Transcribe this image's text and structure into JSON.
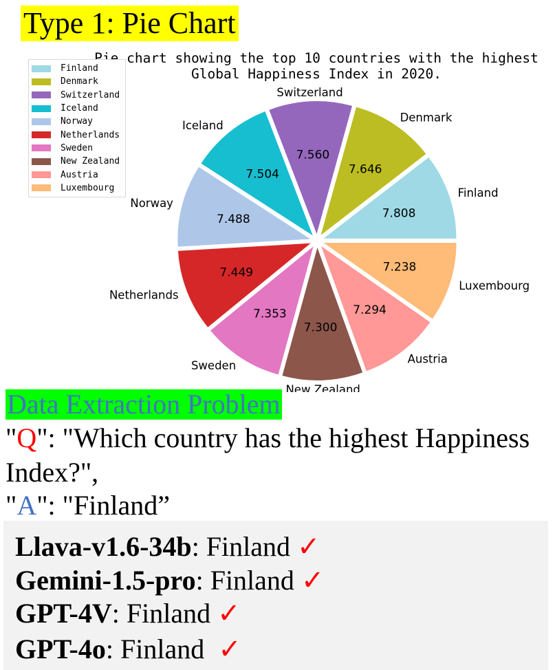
{
  "header": {
    "type_title": "Type 1: Pie Chart"
  },
  "chart_data": {
    "type": "pie",
    "title": "Pie chart showing the top 10 countries with the highest\nGlobal Happiness Index in 2020.",
    "categories": [
      "Finland",
      "Denmark",
      "Switzerland",
      "Iceland",
      "Norway",
      "Netherlands",
      "Sweden",
      "New Zealand",
      "Austria",
      "Luxembourg"
    ],
    "values": [
      7.808,
      7.646,
      7.56,
      7.504,
      7.488,
      7.449,
      7.353,
      7.3,
      7.294,
      7.238
    ],
    "value_labels": [
      "7.808",
      "7.646",
      "7.560",
      "7.504",
      "7.488",
      "7.449",
      "7.353",
      "7.300",
      "7.294",
      "7.238"
    ],
    "colors": [
      "#9ed9e5",
      "#bcbd22",
      "#9467bd",
      "#17becf",
      "#aec7e8",
      "#d62728",
      "#e377c2",
      "#8c564b",
      "#ff9896",
      "#ffbb78"
    ],
    "start_angle_deg": 0,
    "direction": "counterclockwise",
    "exploded": true,
    "legend_position": "upper-left"
  },
  "problem": {
    "banner": "Data Extraction Problem",
    "q_open": "\"",
    "q_letter": "Q",
    "q_rest": "\": \"Which country has the highest Happiness Index?\",",
    "a_open": "\"",
    "a_letter": "A",
    "a_rest": "\": \"Finland”"
  },
  "answers": [
    {
      "model": "Llava-v1.6-34b",
      "answer": ": Finland",
      "mark": "✓"
    },
    {
      "model": "Gemini-1.5-pro",
      "answer": ": Finland",
      "mark": "✓"
    },
    {
      "model": "GPT-4V",
      "answer": ": Finland",
      "mark": "✓"
    },
    {
      "model": "GPT-4o",
      "answer": ": Finland ",
      "mark": "✓"
    }
  ],
  "colors": {
    "title_highlight": "#ffff00",
    "banner_bg": "#00ff00",
    "banner_text": "#4472c4",
    "q_color": "#ff0000",
    "a_color": "#4472c4",
    "check_color": "#ff0000",
    "panel_bg": "#f2f2f2"
  }
}
